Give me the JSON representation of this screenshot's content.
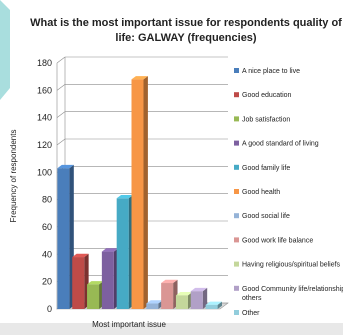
{
  "chart_data": {
    "type": "bar",
    "title_lines": [
      "What is the most important issue for respondents quality of",
      "life: GALWAY (frequencies)"
    ],
    "ylabel": "Frequency of respondents",
    "xlabel": "Most important issue",
    "ylim": [
      0,
      180
    ],
    "yticks": [
      0,
      20,
      40,
      60,
      80,
      100,
      120,
      140,
      160,
      180
    ],
    "grid": "horizontal",
    "legend_position": "right",
    "legend_lines": [
      [
        "A nice place to live"
      ],
      [
        "Good education"
      ],
      [
        "Job satisfaction"
      ],
      [
        "A good standard of living"
      ],
      [
        "Good family life"
      ],
      [
        "Good health"
      ],
      [
        "Good social life"
      ],
      [
        "Good work life balance"
      ],
      [
        "Having religious/spiritual beliefs"
      ],
      [
        "Good Community life/relationships",
        "others"
      ],
      [
        "Other"
      ]
    ],
    "series": [
      {
        "name": "A nice place to live",
        "value": 103,
        "color": "#4a7ebb"
      },
      {
        "name": "Good education",
        "value": 38,
        "color": "#be4b48"
      },
      {
        "name": "Job satisfaction",
        "value": 18,
        "color": "#98b954"
      },
      {
        "name": "A good standard of living",
        "value": 42,
        "color": "#7d60a0"
      },
      {
        "name": "Good family life",
        "value": 81,
        "color": "#46aac5"
      },
      {
        "name": "Good health",
        "value": 168,
        "color": "#f79646"
      },
      {
        "name": "Good social life",
        "value": 4,
        "color": "#95b3d7"
      },
      {
        "name": "Good work life balance",
        "value": 19,
        "color": "#da9694"
      },
      {
        "name": "Having religious/spiritual beliefs",
        "value": 10,
        "color": "#c4d79b"
      },
      {
        "name": "Good Community life/relationships others",
        "value": 13,
        "color": "#b1a0c7"
      },
      {
        "name": "Other",
        "value": 3,
        "color": "#92cddc"
      }
    ]
  }
}
